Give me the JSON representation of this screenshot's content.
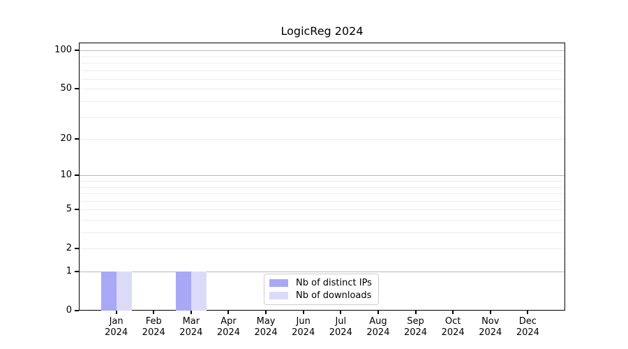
{
  "chart_data": {
    "type": "bar",
    "title": "LogicReg 2024",
    "y_scale": "log1p",
    "ylim": [
      0,
      115
    ],
    "y_ticks": [
      0,
      1,
      2,
      5,
      10,
      20,
      50,
      100
    ],
    "grid": {
      "major": [
        1,
        10,
        100
      ],
      "minor": [
        2,
        3,
        4,
        5,
        6,
        7,
        8,
        9,
        20,
        30,
        40,
        50,
        60,
        70,
        80,
        90
      ]
    },
    "categories": [
      {
        "month": "Jan",
        "year": "2024"
      },
      {
        "month": "Feb",
        "year": "2024"
      },
      {
        "month": "Mar",
        "year": "2024"
      },
      {
        "month": "Apr",
        "year": "2024"
      },
      {
        "month": "May",
        "year": "2024"
      },
      {
        "month": "Jun",
        "year": "2024"
      },
      {
        "month": "Jul",
        "year": "2024"
      },
      {
        "month": "Aug",
        "year": "2024"
      },
      {
        "month": "Sep",
        "year": "2024"
      },
      {
        "month": "Oct",
        "year": "2024"
      },
      {
        "month": "Nov",
        "year": "2024"
      },
      {
        "month": "Dec",
        "year": "2024"
      }
    ],
    "series": [
      {
        "name": "Nb of distinct IPs",
        "color": "#a8a8f7",
        "values": [
          1,
          0,
          1,
          0,
          0,
          0,
          0,
          0,
          0,
          0,
          0,
          0
        ]
      },
      {
        "name": "Nb of downloads",
        "color": "#dbdbf9",
        "values": [
          1,
          0,
          1,
          0,
          0,
          0,
          0,
          0,
          0,
          0,
          0,
          0
        ]
      }
    ],
    "legend": {
      "position": "lower center"
    },
    "colors": {
      "grid_major": "#b8b8b8",
      "grid_minor": "#ececec",
      "spine": "#000000",
      "background": "#ffffff"
    }
  }
}
